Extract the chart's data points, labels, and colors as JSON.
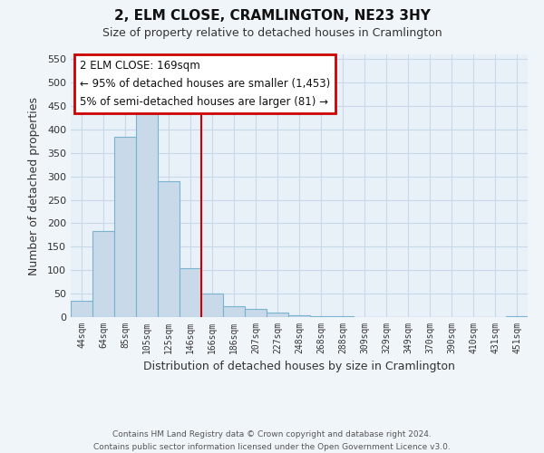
{
  "title": "2, ELM CLOSE, CRAMLINGTON, NE23 3HY",
  "subtitle": "Size of property relative to detached houses in Cramlington",
  "xlabel": "Distribution of detached houses by size in Cramlington",
  "ylabel": "Number of detached properties",
  "footer_line1": "Contains HM Land Registry data © Crown copyright and database right 2024.",
  "footer_line2": "Contains public sector information licensed under the Open Government Licence v3.0.",
  "bin_labels": [
    "44sqm",
    "64sqm",
    "85sqm",
    "105sqm",
    "125sqm",
    "146sqm",
    "166sqm",
    "186sqm",
    "207sqm",
    "227sqm",
    "248sqm",
    "268sqm",
    "288sqm",
    "309sqm",
    "329sqm",
    "349sqm",
    "370sqm",
    "390sqm",
    "410sqm",
    "431sqm",
    "451sqm"
  ],
  "bar_values": [
    35,
    183,
    384,
    456,
    289,
    105,
    50,
    23,
    18,
    9,
    3,
    1,
    1,
    0,
    0,
    0,
    0,
    0,
    0,
    0,
    1
  ],
  "bar_color": "#c8d9ea",
  "bar_edge_color": "#7ab3d0",
  "vline_color": "#cc0000",
  "ylim": [
    0,
    560
  ],
  "yticks": [
    0,
    50,
    100,
    150,
    200,
    250,
    300,
    350,
    400,
    450,
    500,
    550
  ],
  "annotation_box_title": "2 ELM CLOSE: 169sqm",
  "annotation_line1": "← 95% of detached houses are smaller (1,453)",
  "annotation_line2": "5% of semi-detached houses are larger (81) →",
  "annotation_box_color": "#cc0000",
  "grid_color": "#c8d8e8",
  "background_color": "#f0f5fa",
  "plot_bg_color": "#e8f0f8"
}
